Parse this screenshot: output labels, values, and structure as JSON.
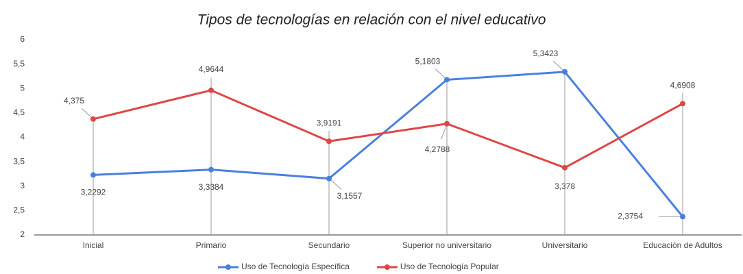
{
  "chart_data": {
    "type": "line",
    "title": "Tipos de tecnologías en relación con el nivel educativo",
    "categories": [
      "Inicial",
      "Primario",
      "Secundario",
      "Superior no universitario",
      "Universitario",
      "Educación de Adultos"
    ],
    "series": [
      {
        "name": "Uso de Tecnología Específica",
        "color": "#4a7fe0",
        "values": [
          3.2292,
          3.3384,
          3.1557,
          5.1803,
          5.3423,
          2.3754
        ],
        "value_labels": [
          "3,2292",
          "3,3384",
          "3,1557",
          "5,1803",
          "5,3423",
          "2,3754"
        ]
      },
      {
        "name": "Uso de Tecnología Popular",
        "color": "#e04545",
        "values": [
          4.375,
          4.9644,
          3.9191,
          4.2788,
          3.378,
          4.6908
        ],
        "value_labels": [
          "4,375",
          "4,9644",
          "3,9191",
          "4,2788",
          "3,378",
          "4,6908"
        ]
      }
    ],
    "ylim": [
      2,
      6
    ],
    "yticks": [
      2,
      {
        "value": 2.5,
        "label": "2,5"
      },
      3,
      {
        "value": 3.5,
        "label": "3,5"
      },
      4,
      {
        "value": 4.5,
        "label": "4,5"
      },
      5,
      {
        "value": 5.5,
        "label": "5,5"
      },
      6
    ],
    "legend": "bottom"
  }
}
